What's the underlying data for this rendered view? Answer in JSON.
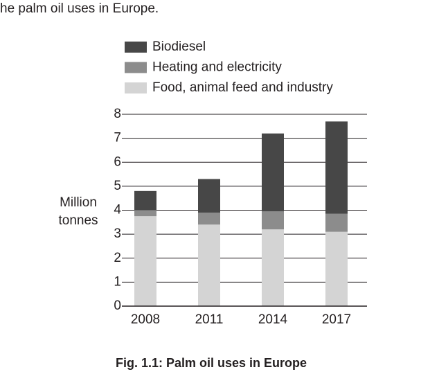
{
  "intro_text": "he palm oil uses in Europe.",
  "chart_data": {
    "type": "bar",
    "stacked": true,
    "caption": "Fig. 1.1: Palm oil uses in Europe",
    "y_label": "Million tonnes",
    "categories": [
      "2008",
      "2011",
      "2014",
      "2017"
    ],
    "series": [
      {
        "name": "Biodiesel",
        "color": "#474747",
        "values": [
          0.8,
          1.4,
          3.25,
          3.85
        ]
      },
      {
        "name": "Heating and electricity",
        "color": "#8c8c8c",
        "values": [
          0.25,
          0.5,
          0.75,
          0.75
        ]
      },
      {
        "name": "Food, animal feed and industry",
        "color": "#d4d4d4",
        "values": [
          3.75,
          3.4,
          3.2,
          3.1
        ]
      }
    ],
    "ylim": [
      0,
      8
    ],
    "yticks": [
      0,
      1,
      2,
      3,
      4,
      5,
      6,
      7,
      8
    ],
    "grid": true,
    "legend": "top"
  }
}
